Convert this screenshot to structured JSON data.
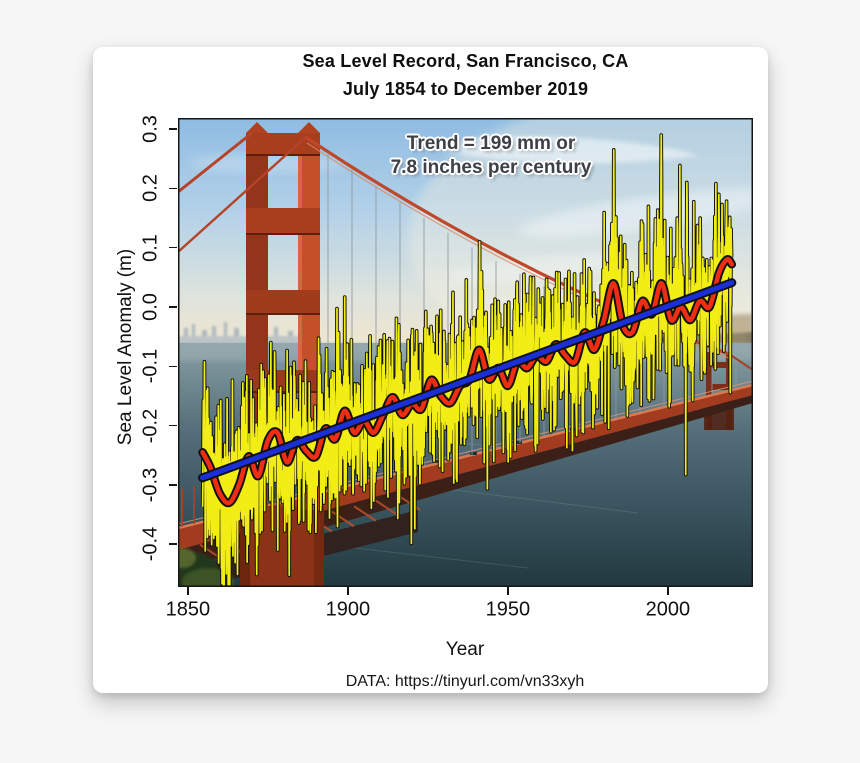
{
  "title": {
    "line1": "Sea Level Record, San Francisco, CA",
    "line2": "July 1854 to December 2019"
  },
  "annotation": {
    "line1": "Trend = 199 mm or",
    "line2": "7.8 inches per century"
  },
  "footer": {
    "text": "DATA: https://tinyurl.com/vn33xyh"
  },
  "colors": {
    "page_background": "#f6f6f6",
    "card_background": "#ffffff",
    "monthly_line": "#f2ee15",
    "smoothed_line": "#ee2d12",
    "trend_line": "#1b2fd6",
    "line_outline": "#101010",
    "axis_text": "#111111"
  },
  "chart_data": {
    "type": "line",
    "title": "Sea Level Record, San Francisco, CA",
    "subtitle": "July 1854 to December 2019",
    "xlabel": "Year",
    "ylabel": "Sea Level Anomaly (m)",
    "xlim": [
      1846.9,
      2026.6
    ],
    "ylim": [
      -0.4722,
      0.3187
    ],
    "grid": false,
    "background": "golden-gate-bridge-photo",
    "annotation_text": "Trend = 199 mm or 7.8 inches per century",
    "data_source": "DATA: https://tinyurl.com/vn33xyh",
    "x_ticks": [
      {
        "value": 1850,
        "label": "1850"
      },
      {
        "value": 1900,
        "label": "1900"
      },
      {
        "value": 1950,
        "label": "1950"
      },
      {
        "value": 2000,
        "label": "2000"
      }
    ],
    "y_ticks": [
      {
        "value": 0.3,
        "label": "0.3"
      },
      {
        "value": 0.2,
        "label": "0.2"
      },
      {
        "value": 0.1,
        "label": "0.1"
      },
      {
        "value": 0.0,
        "label": "0.0"
      },
      {
        "value": -0.1,
        "label": "-0.1"
      },
      {
        "value": -0.2,
        "label": "-0.2"
      },
      {
        "value": -0.3,
        "label": "-0.3"
      },
      {
        "value": -0.4,
        "label": "-0.4"
      }
    ],
    "series": [
      {
        "name": "Monthly sea level anomaly",
        "type": "noisy-line",
        "color": "#f2ee15",
        "outline": "#101010",
        "x_start": 1854.5833,
        "x_end": 2019.9583,
        "step_years": 0.0833333,
        "noise_sd": 0.062,
        "seasonal_amplitude": 0.022,
        "seed": 20190731,
        "extremes": [
          [
            1857.9,
            -0.38
          ],
          [
            1862.0,
            -0.45
          ],
          [
            1864.1,
            -0.42
          ],
          [
            1868.9,
            -0.4
          ],
          [
            1871.1,
            -0.38
          ],
          [
            1878.1,
            -0.41
          ],
          [
            1884.9,
            -0.36
          ],
          [
            1890.0,
            -0.38
          ],
          [
            1897.9,
            -0.3
          ],
          [
            1905.1,
            -0.31
          ],
          [
            1916.1,
            -0.33
          ],
          [
            1926.9,
            -0.26
          ],
          [
            1933.9,
            -0.29
          ],
          [
            1941.2,
            0.11
          ],
          [
            1949.9,
            -0.24
          ],
          [
            1957.9,
            0.04
          ],
          [
            1964.9,
            -0.2
          ],
          [
            1969.1,
            0.06
          ],
          [
            1977.9,
            -0.17
          ],
          [
            1983.1,
            0.265
          ],
          [
            1988.9,
            -0.16
          ],
          [
            1992.1,
            0.14
          ],
          [
            1997.9,
            0.29
          ],
          [
            2002.9,
            0.15
          ],
          [
            2005.9,
            0.21
          ],
          [
            2007.9,
            -0.1
          ],
          [
            2010.1,
            0.15
          ],
          [
            2015.9,
            0.19
          ],
          [
            2019.2,
            0.13
          ]
        ]
      },
      {
        "name": "Smoothed multi-year average",
        "type": "smooth-line",
        "color": "#ee2d12",
        "outline": "#101010",
        "points": [
          [
            1854.6,
            -0.245
          ],
          [
            1857,
            -0.27
          ],
          [
            1860,
            -0.315
          ],
          [
            1863,
            -0.33
          ],
          [
            1866,
            -0.3
          ],
          [
            1869,
            -0.252
          ],
          [
            1872,
            -0.285
          ],
          [
            1875,
            -0.225
          ],
          [
            1878,
            -0.212
          ],
          [
            1881,
            -0.262
          ],
          [
            1884,
            -0.225
          ],
          [
            1887,
            -0.243
          ],
          [
            1890,
            -0.252
          ],
          [
            1893,
            -0.205
          ],
          [
            1896,
            -0.223
          ],
          [
            1899,
            -0.175
          ],
          [
            1902,
            -0.212
          ],
          [
            1905,
            -0.192
          ],
          [
            1908,
            -0.212
          ],
          [
            1911,
            -0.182
          ],
          [
            1914,
            -0.152
          ],
          [
            1917,
            -0.182
          ],
          [
            1920,
            -0.163
          ],
          [
            1923,
            -0.172
          ],
          [
            1926,
            -0.123
          ],
          [
            1929,
            -0.15
          ],
          [
            1932,
            -0.162
          ],
          [
            1935,
            -0.133
          ],
          [
            1938,
            -0.122
          ],
          [
            1941,
            -0.072
          ],
          [
            1944,
            -0.122
          ],
          [
            1947,
            -0.103
          ],
          [
            1950,
            -0.133
          ],
          [
            1953,
            -0.092
          ],
          [
            1956,
            -0.103
          ],
          [
            1959,
            -0.082
          ],
          [
            1962,
            -0.092
          ],
          [
            1965,
            -0.063
          ],
          [
            1968,
            -0.082
          ],
          [
            1971,
            -0.092
          ],
          [
            1974,
            -0.043
          ],
          [
            1977,
            -0.072
          ],
          [
            1980,
            -0.022
          ],
          [
            1983,
            0.04
          ],
          [
            1986,
            -0.032
          ],
          [
            1989,
            -0.042
          ],
          [
            1992,
            0.01
          ],
          [
            1995,
            -0.012
          ],
          [
            1998,
            0.04
          ],
          [
            2001,
            -0.022
          ],
          [
            2004,
            0.0
          ],
          [
            2007,
            -0.022
          ],
          [
            2010,
            0.01
          ],
          [
            2013,
            0.0
          ],
          [
            2016,
            0.058
          ],
          [
            2018.5,
            0.08
          ],
          [
            2019.96,
            0.072
          ]
        ]
      },
      {
        "name": "Linear trend",
        "type": "straight-line",
        "color": "#1b2fd6",
        "outline": "#101010",
        "points": [
          [
            1854.58,
            -0.288
          ],
          [
            2019.96,
            0.041
          ]
        ],
        "slope_mm_per_century": 199,
        "slope_inches_per_century": 7.8
      }
    ]
  }
}
